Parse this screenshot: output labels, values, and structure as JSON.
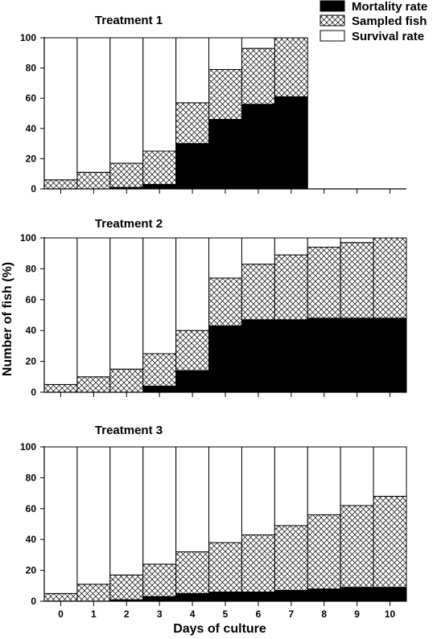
{
  "chart_data": {
    "type": "bar",
    "stacked": true,
    "xlabel": "Days of culture",
    "ylabel": "Number of fish (%)",
    "ylim": [
      0,
      100
    ],
    "yticks": [
      0,
      20,
      40,
      60,
      80,
      100
    ],
    "categories": [
      "0",
      "1",
      "2",
      "3",
      "4",
      "5",
      "6",
      "7",
      "8",
      "9",
      "10"
    ],
    "legend": {
      "placement": "top-right",
      "entries": [
        {
          "name": "Mortality rate",
          "pattern": "solid-black"
        },
        {
          "name": "Sampled fish",
          "pattern": "crosshatch"
        },
        {
          "name": "Survival rate",
          "pattern": "white"
        }
      ]
    },
    "panels": [
      {
        "title": "Treatment 1",
        "series": [
          {
            "name": "Mortality rate",
            "values": [
              0,
              0,
              1,
              3,
              30,
              46,
              56,
              61,
              null,
              null,
              null
            ]
          },
          {
            "name": "Sampled fish",
            "values": [
              6,
              11,
              16,
              22,
              27,
              33,
              37,
              39,
              null,
              null,
              null
            ]
          },
          {
            "name": "Survival rate",
            "values": [
              94,
              89,
              83,
              75,
              43,
              21,
              7,
              0,
              null,
              null,
              null
            ]
          }
        ]
      },
      {
        "title": "Treatment 2",
        "series": [
          {
            "name": "Mortality rate",
            "values": [
              0,
              0,
              0,
              4,
              14,
              43,
              47,
              47,
              48,
              48,
              48
            ]
          },
          {
            "name": "Sampled fish",
            "values": [
              5,
              10,
              15,
              21,
              26,
              31,
              36,
              42,
              46,
              49,
              52
            ]
          },
          {
            "name": "Survival rate",
            "values": [
              95,
              90,
              85,
              75,
              60,
              26,
              17,
              11,
              6,
              3,
              0
            ]
          }
        ]
      },
      {
        "title": "Treatment 3",
        "series": [
          {
            "name": "Mortality rate",
            "values": [
              0,
              0,
              1,
              3,
              5,
              6,
              6,
              7,
              8,
              9,
              9
            ]
          },
          {
            "name": "Sampled fish",
            "values": [
              5,
              11,
              16,
              21,
              27,
              32,
              37,
              42,
              48,
              53,
              59
            ]
          },
          {
            "name": "Survival rate",
            "values": [
              95,
              89,
              83,
              76,
              68,
              62,
              57,
              51,
              44,
              38,
              32
            ]
          }
        ]
      }
    ]
  },
  "colors": {
    "mortality": "#000000",
    "sampled_lines": "#000000",
    "survival": "#ffffff",
    "axis": "#000000"
  }
}
